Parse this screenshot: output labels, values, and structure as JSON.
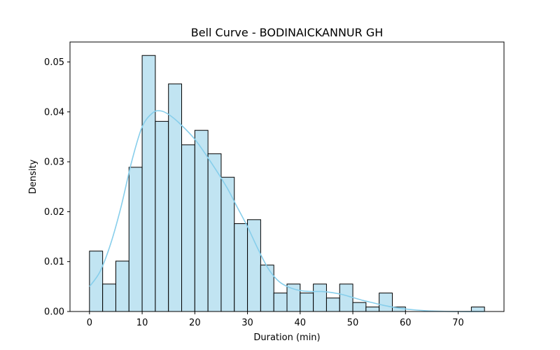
{
  "chart_data": {
    "type": "bar",
    "title": "Bell Curve - BODINAICKANNUR GH",
    "xlabel": "Duration (min)",
    "ylabel": "Density",
    "xlim": [
      -3.7,
      78.7
    ],
    "ylim": [
      0,
      0.054
    ],
    "xticks": [
      0,
      10,
      20,
      30,
      40,
      50,
      60,
      70
    ],
    "yticks": [
      0.0,
      0.01,
      0.02,
      0.03,
      0.04,
      0.05
    ],
    "ytick_labels": [
      "0.00",
      "0.01",
      "0.02",
      "0.03",
      "0.04",
      "0.05"
    ],
    "bin_width": 2.5,
    "bins": [
      {
        "start": 0.0,
        "density": 0.0121
      },
      {
        "start": 2.5,
        "density": 0.0055
      },
      {
        "start": 5.0,
        "density": 0.0101
      },
      {
        "start": 7.5,
        "density": 0.0289
      },
      {
        "start": 10.0,
        "density": 0.0513
      },
      {
        "start": 12.5,
        "density": 0.0381
      },
      {
        "start": 15.0,
        "density": 0.0456
      },
      {
        "start": 17.5,
        "density": 0.0334
      },
      {
        "start": 20.0,
        "density": 0.0363
      },
      {
        "start": 22.5,
        "density": 0.0316
      },
      {
        "start": 25.0,
        "density": 0.0269
      },
      {
        "start": 27.5,
        "density": 0.0176
      },
      {
        "start": 30.0,
        "density": 0.0184
      },
      {
        "start": 32.5,
        "density": 0.0093
      },
      {
        "start": 35.0,
        "density": 0.0037
      },
      {
        "start": 37.5,
        "density": 0.0055
      },
      {
        "start": 40.0,
        "density": 0.0037
      },
      {
        "start": 42.5,
        "density": 0.0055
      },
      {
        "start": 45.0,
        "density": 0.0027
      },
      {
        "start": 47.5,
        "density": 0.0055
      },
      {
        "start": 50.0,
        "density": 0.0018
      },
      {
        "start": 52.5,
        "density": 0.0009
      },
      {
        "start": 55.0,
        "density": 0.0037
      },
      {
        "start": 57.5,
        "density": 0.0009
      },
      {
        "start": 72.5,
        "density": 0.0009
      }
    ],
    "kde": {
      "x": [
        0,
        2,
        4,
        6,
        8,
        10,
        12,
        13.5,
        15,
        17,
        20,
        23,
        26,
        28,
        30,
        32,
        34,
        36,
        38,
        40,
        42,
        44,
        46,
        48,
        50,
        52,
        54,
        56,
        58,
        60,
        62,
        65,
        70,
        75
      ],
      "y": [
        0.005,
        0.008,
        0.0135,
        0.021,
        0.03,
        0.037,
        0.0398,
        0.0402,
        0.0395,
        0.0378,
        0.0345,
        0.03,
        0.025,
        0.021,
        0.017,
        0.0125,
        0.0085,
        0.006,
        0.0048,
        0.0042,
        0.004,
        0.004,
        0.0038,
        0.0034,
        0.0028,
        0.0022,
        0.0017,
        0.0012,
        0.0008,
        0.0005,
        0.0003,
        0.0001,
        0.0,
        0.0
      ]
    },
    "colors": {
      "bar_fill": "#c1e4f2",
      "bar_edge": "#000000",
      "kde_line": "#87ceeb"
    },
    "grid": false,
    "legend": "none"
  }
}
